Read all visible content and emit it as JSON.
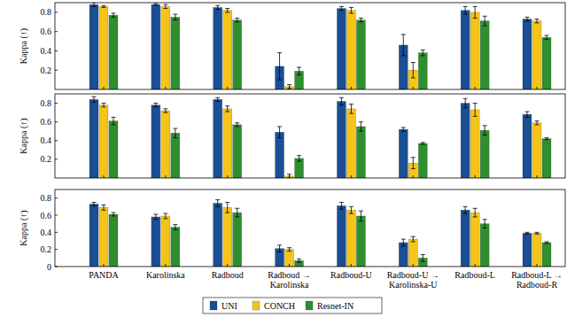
{
  "chart_data": [
    {
      "type": "bar",
      "y_label": "Kappa (↑)",
      "categories": [
        null,
        null,
        null,
        null,
        null,
        null,
        null,
        null
      ],
      "series": [
        {
          "color": "#1b4f94",
          "values": [
            0.88,
            0.88,
            0.85,
            0.24,
            0.84,
            0.46,
            0.82,
            0.73
          ],
          "errors": [
            0.02,
            0.01,
            0.02,
            0.14,
            0.02,
            0.11,
            0.04,
            0.02
          ]
        },
        {
          "color": "#f5c41a",
          "values": [
            0.86,
            0.86,
            0.82,
            0.03,
            0.82,
            0.2,
            0.8,
            0.71
          ],
          "errors": [
            0.01,
            0.02,
            0.02,
            0.02,
            0.03,
            0.08,
            0.06,
            0.02
          ]
        },
        {
          "color": "#2f8f2f",
          "values": [
            0.77,
            0.75,
            0.72,
            0.19,
            0.72,
            0.38,
            0.71,
            0.54
          ],
          "errors": [
            0.02,
            0.03,
            0.02,
            0.04,
            0.02,
            0.03,
            0.05,
            0.02
          ]
        }
      ],
      "ylim": [
        0,
        0.9
      ],
      "yticks": [
        0.2,
        0.4,
        0.6,
        0.8
      ],
      "grid": false,
      "tick_labels": "y"
    },
    {
      "type": "bar",
      "y_label": "Kappa (↑)",
      "categories": [
        null,
        null,
        null,
        null,
        null,
        null,
        null,
        null
      ],
      "series": [
        {
          "color": "#1b4f94",
          "values": [
            0.84,
            0.78,
            0.84,
            0.49,
            0.82,
            0.52,
            0.8,
            0.68
          ],
          "errors": [
            0.03,
            0.02,
            0.02,
            0.06,
            0.04,
            0.02,
            0.05,
            0.03
          ]
        },
        {
          "color": "#f5c41a",
          "values": [
            0.78,
            0.72,
            0.74,
            0.02,
            0.74,
            0.16,
            0.73,
            0.59
          ],
          "errors": [
            0.02,
            0.02,
            0.03,
            0.02,
            0.05,
            0.06,
            0.07,
            0.02
          ]
        },
        {
          "color": "#2f8f2f",
          "values": [
            0.61,
            0.48,
            0.57,
            0.21,
            0.55,
            0.37,
            0.51,
            0.42
          ],
          "errors": [
            0.04,
            0.05,
            0.02,
            0.03,
            0.05,
            0.01,
            0.05,
            0.01
          ]
        }
      ],
      "ylim": [
        0,
        0.9
      ],
      "yticks": [
        0.2,
        0.4,
        0.6,
        0.8
      ],
      "grid": false,
      "tick_labels": "y"
    },
    {
      "type": "bar",
      "y_label": "Kappa (↑)",
      "categories": [
        "PANDA",
        "Karolinska",
        "Radboud",
        "Radboud →\nKarolinska",
        "Radboud-U",
        "Radboud-U →\nKarolinska-U",
        "Radboud-L",
        "Radboud-L →\nRadboud-R"
      ],
      "series": [
        {
          "name": "UNI",
          "color": "#1b4f94",
          "values": [
            0.73,
            0.58,
            0.74,
            0.21,
            0.71,
            0.28,
            0.66,
            0.39
          ],
          "errors": [
            0.02,
            0.03,
            0.04,
            0.04,
            0.04,
            0.04,
            0.04,
            0.01
          ]
        },
        {
          "name": "CONCH",
          "color": "#f5c41a",
          "values": [
            0.69,
            0.59,
            0.69,
            0.2,
            0.66,
            0.32,
            0.63,
            0.39
          ],
          "errors": [
            0.03,
            0.03,
            0.06,
            0.02,
            0.04,
            0.03,
            0.05,
            0.01
          ]
        },
        {
          "name": "Resnet-IN",
          "color": "#2f8f2f",
          "values": [
            0.61,
            0.46,
            0.63,
            0.07,
            0.59,
            0.1,
            0.5,
            0.28
          ],
          "errors": [
            0.02,
            0.03,
            0.05,
            0.02,
            0.06,
            0.04,
            0.05,
            0.01
          ]
        }
      ],
      "ylim": [
        0,
        0.9
      ],
      "yticks": [
        0,
        0.2,
        0.4,
        0.6,
        0.8
      ],
      "grid": false,
      "legend": "bottom"
    }
  ]
}
